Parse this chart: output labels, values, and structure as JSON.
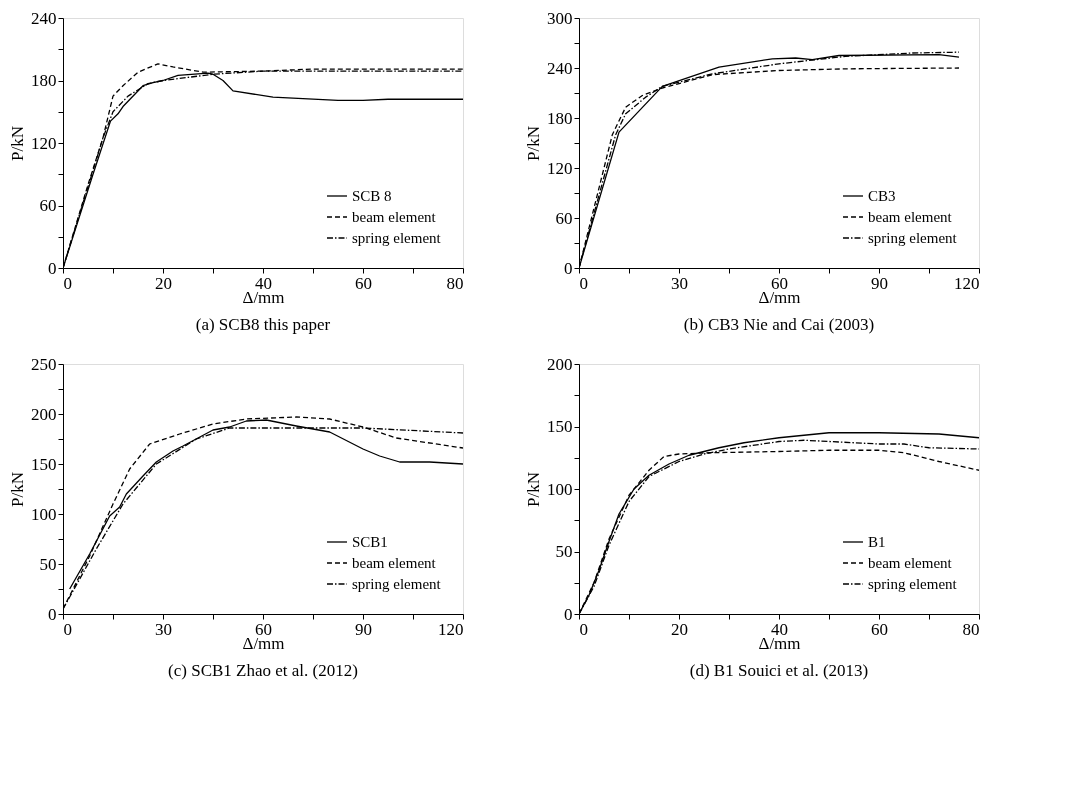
{
  "chart_data": [
    {
      "type": "line",
      "title": "(a) SCB8 this paper",
      "xlabel": "Δ/mm",
      "ylabel": "P/kN",
      "xlim": [
        0,
        80
      ],
      "ylim": [
        0,
        240
      ],
      "xticks": [
        0,
        {
          "value": 10,
          "label": null
        },
        20,
        {
          "value": 30,
          "label": null
        },
        40,
        {
          "value": 50,
          "label": null
        },
        60,
        {
          "value": 70,
          "label": null
        },
        80
      ],
      "yticks": [
        0,
        {
          "value": 30,
          "label": null
        },
        60,
        {
          "value": 90,
          "label": null
        },
        120,
        {
          "value": 150,
          "label": null
        },
        180,
        {
          "value": 210,
          "label": null
        },
        240
      ],
      "grid": false,
      "legend": "bottom right",
      "series": [
        {
          "name": "SCB 8",
          "color": "#000000",
          "line_style": "solid",
          "x": [
            0,
            3,
            6,
            9.5,
            11,
            12,
            16,
            18,
            20,
            23,
            29,
            30,
            32,
            34,
            42,
            55,
            60,
            65,
            80
          ],
          "values": [
            0,
            45,
            90,
            141,
            148,
            155,
            175,
            178,
            180,
            185,
            187,
            186,
            180,
            170,
            164,
            161,
            161,
            162,
            162
          ]
        },
        {
          "name": "beam element",
          "color": "#000000",
          "line_style": "dashed",
          "x": [
            0,
            5,
            8,
            10,
            12,
            15,
            19,
            22,
            28,
            40,
            50,
            60,
            80
          ],
          "values": [
            0,
            80,
            125,
            165,
            175,
            188,
            196,
            193,
            188,
            189,
            191,
            191,
            191
          ]
        },
        {
          "name": "spring element",
          "color": "#000000",
          "line_style": "dashdot",
          "x": [
            0,
            5,
            8,
            10,
            13,
            17,
            20,
            25,
            30,
            40,
            60,
            80
          ],
          "values": [
            0,
            78,
            125,
            150,
            165,
            177,
            180,
            183,
            186,
            189,
            189,
            189
          ]
        }
      ]
    },
    {
      "type": "line",
      "title": "(b) CB3 Nie and Cai (2003)",
      "xlabel": "Δ/mm",
      "ylabel": "P/kN",
      "xlim": [
        0,
        120
      ],
      "ylim": [
        0,
        300
      ],
      "xticks": [
        0,
        {
          "value": 15,
          "label": null
        },
        30,
        {
          "value": 45,
          "label": null
        },
        60,
        {
          "value": 75,
          "label": null
        },
        90,
        {
          "value": 105,
          "label": null
        },
        120
      ],
      "yticks": [
        0,
        {
          "value": 30,
          "label": null
        },
        60,
        {
          "value": 90,
          "label": null
        },
        120,
        {
          "value": 150,
          "label": null
        },
        180,
        {
          "value": 210,
          "label": null
        },
        240,
        {
          "value": 270,
          "label": null
        },
        300
      ],
      "grid": false,
      "legend": "bottom right",
      "series": [
        {
          "name": "CB3",
          "color": "#000000",
          "line_style": "solid",
          "x": [
            0,
            12,
            25,
            42,
            58,
            65,
            70,
            78,
            108,
            114
          ],
          "values": [
            0,
            163,
            218,
            241,
            251,
            252,
            250,
            255,
            256,
            253
          ]
        },
        {
          "name": "beam element",
          "color": "#000000",
          "line_style": "dashed",
          "x": [
            0,
            10,
            14,
            19,
            25,
            40,
            60,
            80,
            114
          ],
          "values": [
            0,
            160,
            193,
            207,
            216,
            232,
            237,
            239,
            240
          ]
        },
        {
          "name": "spring element",
          "color": "#000000",
          "line_style": "dashdot",
          "x": [
            0,
            11,
            14,
            20,
            25,
            40,
            60,
            80,
            100,
            114
          ],
          "values": [
            0,
            160,
            185,
            205,
            218,
            233,
            245,
            254,
            258,
            259
          ]
        }
      ]
    },
    {
      "type": "line",
      "title": "(c) SCB1 Zhao et al. (2012)",
      "xlabel": "Δ/mm",
      "ylabel": "P/kN",
      "xlim": [
        0,
        120
      ],
      "ylim": [
        0,
        250
      ],
      "xticks": [
        0,
        {
          "value": 15,
          "label": null
        },
        30,
        {
          "value": 45,
          "label": null
        },
        60,
        {
          "value": 75,
          "label": null
        },
        90,
        {
          "value": 105,
          "label": null
        },
        120
      ],
      "yticks": [
        0,
        {
          "value": 25,
          "label": null
        },
        50,
        {
          "value": 75,
          "label": null
        },
        100,
        {
          "value": 125,
          "label": null
        },
        150,
        {
          "value": 175,
          "label": null
        },
        200,
        {
          "value": 225,
          "label": null
        },
        250
      ],
      "grid": false,
      "legend": "bottom right",
      "series": [
        {
          "name": "SCB1",
          "color": "#000000",
          "line_style": "solid",
          "x": [
            2,
            8,
            14,
            17,
            19,
            24,
            28,
            33,
            36,
            45,
            50,
            55,
            61,
            70,
            80,
            90,
            95,
            101,
            110,
            120
          ],
          "values": [
            25,
            60,
            98,
            107,
            120,
            138,
            152,
            163,
            168,
            184,
            187,
            193,
            194,
            188,
            182,
            165,
            158,
            152,
            152,
            150
          ]
        },
        {
          "name": "beam element",
          "color": "#000000",
          "line_style": "dashed",
          "x": [
            0,
            8,
            15,
            20,
            26,
            35,
            45,
            55,
            70,
            80,
            90,
            100,
            120
          ],
          "values": [
            5,
            58,
            110,
            145,
            170,
            180,
            190,
            195,
            197,
            195,
            187,
            176,
            166
          ]
        },
        {
          "name": "spring element",
          "color": "#000000",
          "line_style": "dashdot",
          "x": [
            0,
            10,
            18,
            28,
            40,
            50,
            60,
            90,
            120
          ],
          "values": [
            5,
            65,
            110,
            150,
            175,
            186,
            186,
            186,
            181
          ]
        }
      ]
    },
    {
      "type": "line",
      "title": "(d) B1 Souici et al. (2013)",
      "xlabel": "Δ/mm",
      "ylabel": "P/kN",
      "xlim": [
        0,
        80
      ],
      "ylim": [
        0,
        200
      ],
      "xticks": [
        0,
        {
          "value": 10,
          "label": null
        },
        20,
        {
          "value": 30,
          "label": null
        },
        40,
        {
          "value": 50,
          "label": null
        },
        60,
        {
          "value": 70,
          "label": null
        },
        80
      ],
      "yticks": [
        0,
        {
          "value": 25,
          "label": null
        },
        50,
        {
          "value": 75,
          "label": null
        },
        100,
        {
          "value": 125,
          "label": null
        },
        150,
        {
          "value": 175,
          "label": null
        },
        200
      ],
      "grid": false,
      "legend": "bottom right",
      "series": [
        {
          "name": "B1",
          "color": "#000000",
          "line_style": "solid",
          "x": [
            0,
            2,
            4,
            6,
            8,
            11,
            14,
            18,
            22,
            28,
            33,
            40,
            50,
            60,
            72,
            80
          ],
          "values": [
            0,
            15,
            35,
            58,
            80,
            100,
            111,
            120,
            127,
            133,
            137,
            141,
            145,
            145,
            144,
            141
          ]
        },
        {
          "name": "beam element",
          "color": "#000000",
          "line_style": "dashed",
          "x": [
            0,
            3,
            6,
            10,
            14,
            17,
            20,
            26,
            40,
            50,
            60,
            65,
            72,
            80
          ],
          "values": [
            0,
            25,
            60,
            95,
            115,
            126,
            128,
            129,
            130,
            131,
            131,
            129,
            122,
            115
          ]
        },
        {
          "name": "spring element",
          "color": "#000000",
          "line_style": "dashdot",
          "x": [
            0,
            3,
            6,
            10,
            14,
            20,
            25,
            30,
            40,
            45,
            50,
            60,
            65,
            70,
            80
          ],
          "values": [
            0,
            22,
            55,
            90,
            110,
            122,
            128,
            132,
            138,
            139,
            138,
            136,
            136,
            133,
            132
          ]
        }
      ]
    }
  ]
}
